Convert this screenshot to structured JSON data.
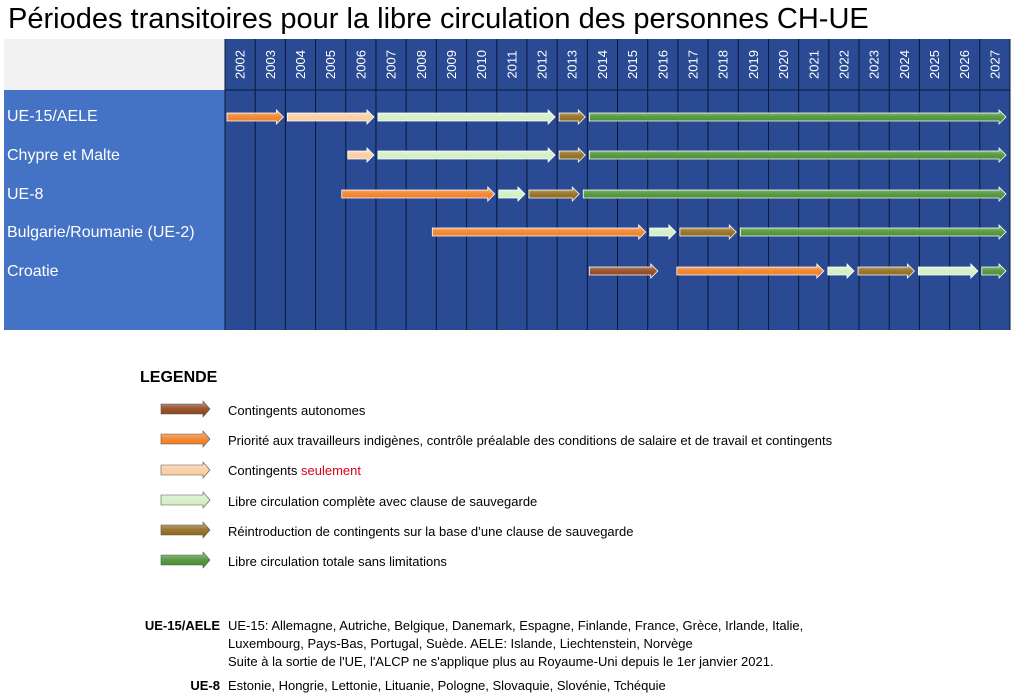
{
  "title": "Périodes transitoires pour la libre circulation des personnes CH-UE",
  "years": [
    "2002",
    "2003",
    "2004",
    "2005",
    "2006",
    "2007",
    "2008",
    "2009",
    "2010",
    "2011",
    "2012",
    "2013",
    "2014",
    "2015",
    "2016",
    "2017",
    "2018",
    "2019",
    "2020",
    "2021",
    "2022",
    "2023",
    "2024",
    "2025",
    "2026",
    "2027"
  ],
  "colors": {
    "grid_bg": "#2a4a94",
    "label_bg": "#4472c4",
    "header_bg": "#f2f2f2",
    "contingents_autonomes": "#8b3a10",
    "priorite": "#f07818",
    "contingents_seulement": "#fbc99a",
    "libre_sauvegarde": "#cfeec0",
    "reintroduction": "#8a6210",
    "libre_totale": "#3f8a26"
  },
  "rows": [
    {
      "label": "UE-15/AELE",
      "segments": [
        {
          "type": "priorite",
          "start": 2002,
          "end": 2004
        },
        {
          "type": "contingents_seulement",
          "start": 2004,
          "end": 2007
        },
        {
          "type": "libre_sauvegarde",
          "start": 2007,
          "end": 2013
        },
        {
          "type": "reintroduction",
          "start": 2013,
          "end": 2014
        },
        {
          "type": "libre_totale",
          "start": 2014,
          "end": 2028
        }
      ]
    },
    {
      "label": "Chypre et Malte",
      "segments": [
        {
          "type": "contingents_seulement",
          "start": 2006,
          "end": 2007
        },
        {
          "type": "libre_sauvegarde",
          "start": 2007,
          "end": 2013
        },
        {
          "type": "reintroduction",
          "start": 2013,
          "end": 2014
        },
        {
          "type": "libre_totale",
          "start": 2014,
          "end": 2028
        }
      ]
    },
    {
      "label": "UE-8",
      "segments": [
        {
          "type": "priorite",
          "start": 2005.8,
          "end": 2011
        },
        {
          "type": "libre_sauvegarde",
          "start": 2011,
          "end": 2012
        },
        {
          "type": "reintroduction",
          "start": 2012,
          "end": 2013.8
        },
        {
          "type": "libre_totale",
          "start": 2013.8,
          "end": 2028
        }
      ]
    },
    {
      "label": "Bulgarie/Roumanie (UE-2)",
      "segments": [
        {
          "type": "priorite",
          "start": 2008.8,
          "end": 2016
        },
        {
          "type": "libre_sauvegarde",
          "start": 2016,
          "end": 2017
        },
        {
          "type": "reintroduction",
          "start": 2017,
          "end": 2019
        },
        {
          "type": "libre_totale",
          "start": 2019,
          "end": 2028
        }
      ]
    },
    {
      "label": "Croatie",
      "segments": [
        {
          "type": "contingents_autonomes",
          "start": 2014,
          "end": 2016.4
        },
        {
          "type": "priorite",
          "start": 2016.9,
          "end": 2021.9
        },
        {
          "type": "libre_sauvegarde",
          "start": 2021.9,
          "end": 2022.9
        },
        {
          "type": "reintroduction",
          "start": 2022.9,
          "end": 2024.9
        },
        {
          "type": "libre_sauvegarde",
          "start": 2024.9,
          "end": 2027
        },
        {
          "type": "libre_totale",
          "start": 2027,
          "end": 2028
        }
      ]
    }
  ],
  "legend": {
    "title": "LEGENDE",
    "items": [
      {
        "type": "contingents_autonomes",
        "text": "Contingents autonomes"
      },
      {
        "type": "priorite",
        "text": "Priorité aux travailleurs indigènes, contrôle préalable des conditions de salaire et de travail et contingents"
      },
      {
        "type": "contingents_seulement",
        "text": "Contingents ",
        "highlight": "seulement"
      },
      {
        "type": "libre_sauvegarde",
        "text": "Libre circulation complète avec clause de sauvegarde"
      },
      {
        "type": "reintroduction",
        "text": "Réintroduction de contingents sur la base d’une clause de sauvegarde"
      },
      {
        "type": "libre_totale",
        "text": "Libre circulation totale sans limitations"
      }
    ]
  },
  "notes": {
    "ue15_key": "UE-15/AELE",
    "ue15_line1": "UE-15: Allemagne, Autriche, Belgique, Danemark, Espagne, Finlande, France, Grèce, Irlande, Italie,",
    "ue15_line2": "Luxembourg, Pays-Bas, Portugal, Suède. AELE: Islande, Liechtenstein, Norvège",
    "ue15_line3": "Suite à la sortie de l'UE, l'ALCP ne s'applique plus au Royaume-Uni depuis le 1er janvier 2021.",
    "ue8_key": "UE-8",
    "ue8_line1": "Estonie, Hongrie, Lettonie, Lituanie, Pologne, Slovaquie, Slovénie, Tchéquie"
  }
}
